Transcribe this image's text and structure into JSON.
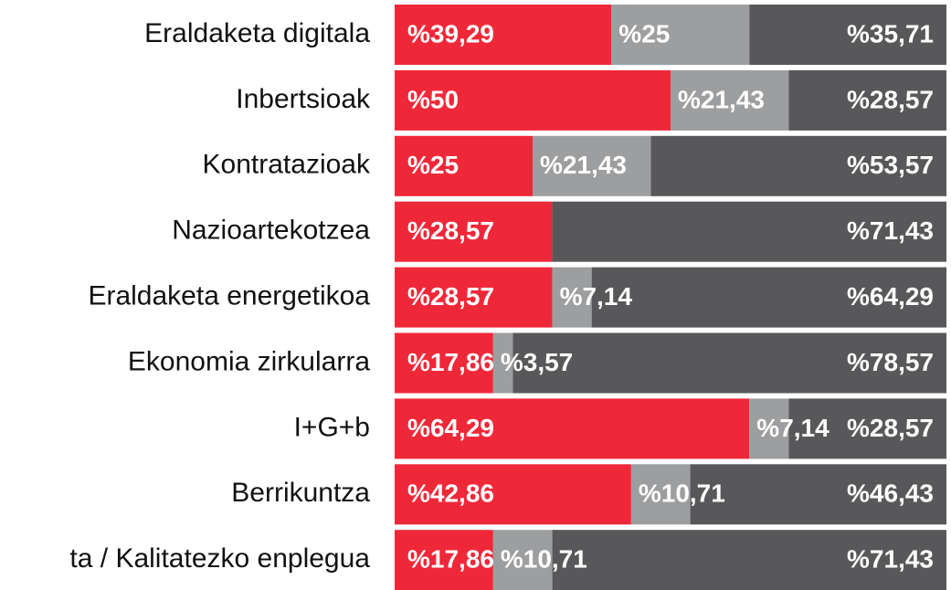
{
  "chart_data": {
    "type": "stacked-bar-horizontal",
    "categories": [
      "Eraldaketa digitala",
      "Inbertsioak",
      "Kontratazioak",
      "Nazioartekotzea",
      "Eraldaketa energetikoa",
      "Ekonomia zirkularra",
      "I+G+b",
      "Berrikuntza",
      "ta / Kalitatezko enplegua"
    ],
    "xlim": [
      0,
      100
    ],
    "series": [
      {
        "color": "#ef2839",
        "values": [
          39.29,
          50,
          25,
          28.57,
          28.57,
          17.86,
          64.29,
          42.86,
          17.86
        ],
        "value_labels": [
          "%39,29",
          "%50",
          "%25",
          "%28,57",
          "%28,57",
          "%17,86",
          "%64,29",
          "%42,86",
          "%17,86"
        ]
      },
      {
        "color": "#9d9ea0",
        "values": [
          25,
          21.43,
          21.43,
          0,
          7.14,
          3.57,
          7.14,
          10.71,
          10.71
        ],
        "value_labels": [
          "%25",
          "%21,43",
          "%21,43",
          null,
          "%7,14",
          "%3,57",
          "%7,14",
          "%10,71",
          "%10,71"
        ]
      },
      {
        "color": "#58585a",
        "values": [
          35.71,
          28.57,
          53.57,
          71.43,
          64.29,
          78.57,
          28.57,
          46.43,
          71.43
        ],
        "value_labels": [
          "%35,71",
          "%28,57",
          "%53,57",
          "%71,43",
          "%64,29",
          "%78,57",
          "%28,57",
          "%46,43",
          "%71,43"
        ]
      }
    ]
  }
}
